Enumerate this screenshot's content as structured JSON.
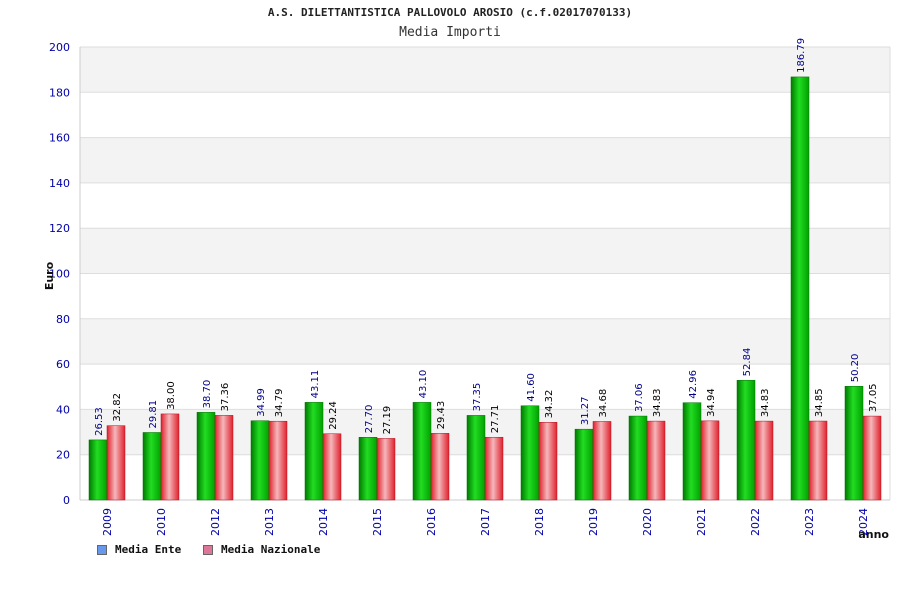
{
  "chart_data": {
    "type": "bar",
    "title": "A.S. DILETTANTISTICA PALLOVOLO AROSIO (c.f.02017070133)",
    "subtitle": "Media Importi",
    "xlabel": "anno",
    "ylabel": "Euro",
    "ylim": [
      0,
      200
    ],
    "yticks": [
      0,
      20,
      40,
      60,
      80,
      100,
      120,
      140,
      160,
      180,
      200
    ],
    "grid": true,
    "legend_position": "bottom-left",
    "categories": [
      "2009",
      "2010",
      "2012",
      "2013",
      "2014",
      "2015",
      "2016",
      "2017",
      "2018",
      "2019",
      "2020",
      "2021",
      "2022",
      "2023",
      "2024"
    ],
    "series": [
      {
        "name": "Media Ente",
        "color": "#00bb00",
        "values": [
          26.53,
          29.81,
          38.7,
          34.99,
          43.11,
          27.7,
          43.1,
          37.35,
          41.6,
          31.27,
          37.06,
          42.96,
          52.84,
          186.79,
          50.2
        ],
        "labels": [
          "26.53",
          "29.81",
          "38.70",
          "34.99",
          "43.11",
          "27.70",
          "43.10",
          "37.35",
          "41.60",
          "31.27",
          "37.06",
          "42.96",
          "52.84",
          "186.79",
          "50.20"
        ]
      },
      {
        "name": "Media Nazionale",
        "color": "#e8303c",
        "values": [
          32.82,
          38.0,
          37.36,
          34.79,
          29.24,
          27.19,
          29.43,
          27.71,
          34.32,
          34.68,
          34.83,
          34.94,
          34.83,
          34.85,
          37.05
        ],
        "labels": [
          "32.82",
          "38.00",
          "37.36",
          "34.79",
          "29.24",
          "27.19",
          "29.43",
          "27.71",
          "34.32",
          "34.68",
          "34.83",
          "34.94",
          "34.83",
          "34.85",
          "37.05"
        ]
      }
    ]
  },
  "legend": {
    "items": [
      {
        "label": "Media Ente",
        "color": "#6699ee"
      },
      {
        "label": "Media Nazionale",
        "color": "#dd7799"
      }
    ]
  }
}
